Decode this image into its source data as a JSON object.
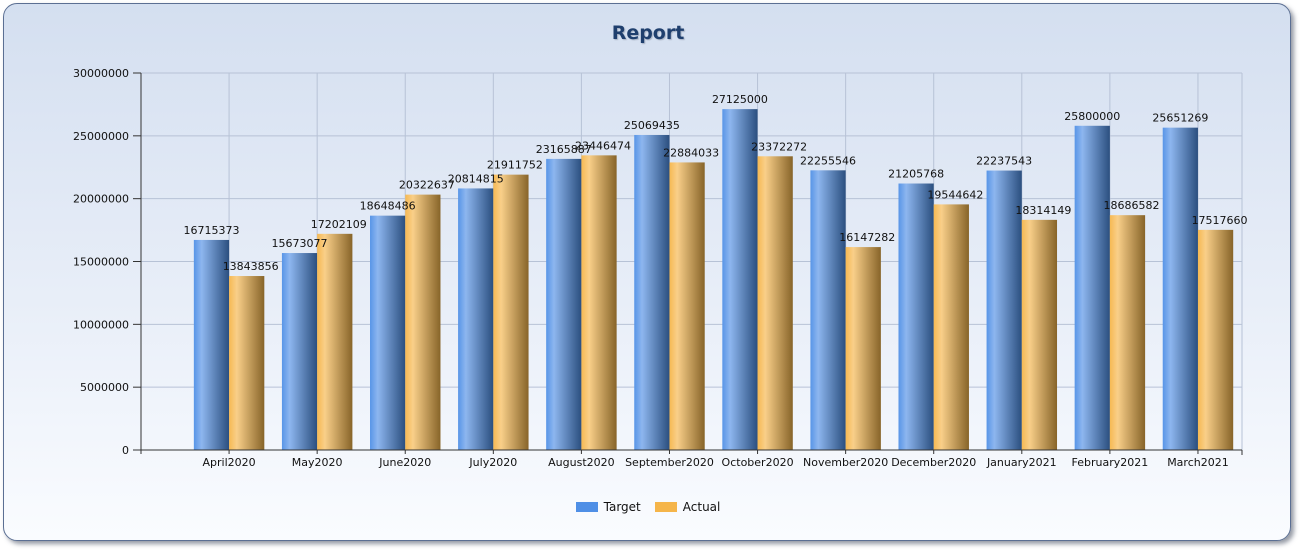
{
  "colors": {
    "target": "#4f8fe6",
    "actual": "#f5b54a",
    "grid": "#b7c2d6",
    "axis": "#333333"
  },
  "chart_data": {
    "type": "bar",
    "title": "Report",
    "xlabel": "",
    "ylabel": "",
    "ylim": [
      0,
      30000000
    ],
    "yticks": [
      0,
      5000000,
      10000000,
      15000000,
      20000000,
      25000000,
      30000000
    ],
    "grid": true,
    "legend_position": "bottom",
    "categories": [
      "April2020",
      "May2020",
      "June2020",
      "July2020",
      "August2020",
      "September2020",
      "October2020",
      "November2020",
      "December2020",
      "January2021",
      "February2021",
      "March2021"
    ],
    "series": [
      {
        "name": "Target",
        "color_key": "target",
        "values": [
          16715373,
          15673077,
          18648486,
          20814815,
          23165887,
          25069435,
          27125000,
          22255546,
          21205768,
          22237543,
          25800000,
          25651269
        ]
      },
      {
        "name": "Actual",
        "color_key": "actual",
        "values": [
          13843856,
          17202109,
          20322637,
          21911752,
          23446474,
          22884033,
          23372272,
          16147282,
          19544642,
          18314149,
          18686582,
          17517660
        ]
      }
    ]
  }
}
